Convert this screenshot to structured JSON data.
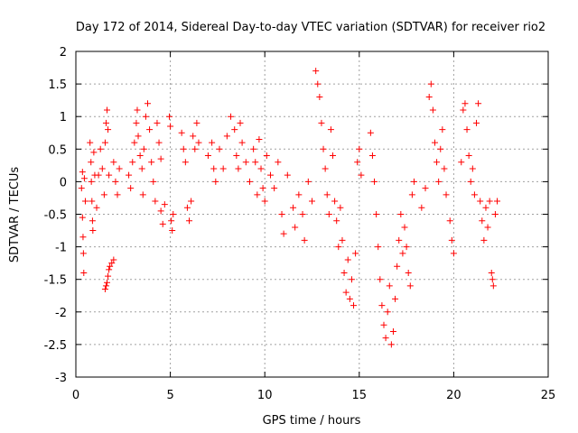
{
  "chart_data": {
    "type": "scatter",
    "title": "Day 172 of 2014, Sidereal Day-to-day VTEC variation (SDTVAR) for receiver rio2",
    "xlabel": "GPS time / hours",
    "ylabel": "SDTVAR / TECUs",
    "xlim": [
      0,
      25
    ],
    "ylim": [
      -3,
      2
    ],
    "xticks": [
      0,
      5,
      10,
      15,
      20,
      25
    ],
    "xtick_labels": [
      "0",
      "5",
      "10",
      "15",
      "20",
      "25"
    ],
    "yticks": [
      2,
      1.5,
      1,
      0.5,
      0,
      -0.5,
      -1,
      -1.5,
      -2,
      -2.5,
      -3
    ],
    "ytick_labels": [
      "2",
      "1.5",
      "1",
      "0.5",
      "0",
      "-0.5",
      "-1",
      "-1.5",
      "-2",
      "-2.5",
      "-3"
    ],
    "grid": true,
    "marker": "+",
    "color": "#ff0000",
    "series": [
      {
        "name": "SDTVAR",
        "points": [
          [
            0.3,
            -0.1
          ],
          [
            0.35,
            0.15
          ],
          [
            0.35,
            -0.55
          ],
          [
            0.38,
            -0.85
          ],
          [
            0.4,
            -1.1
          ],
          [
            0.42,
            -1.4
          ],
          [
            0.45,
            0.05
          ],
          [
            0.5,
            -0.3
          ],
          [
            0.75,
            0.6
          ],
          [
            0.8,
            0.3
          ],
          [
            0.82,
            0.0
          ],
          [
            0.85,
            -0.3
          ],
          [
            0.88,
            -0.6
          ],
          [
            0.9,
            -0.75
          ],
          [
            0.95,
            0.45
          ],
          [
            1.0,
            0.1
          ],
          [
            1.1,
            -0.4
          ],
          [
            1.2,
            0.1
          ],
          [
            1.3,
            0.5
          ],
          [
            1.4,
            0.2
          ],
          [
            1.5,
            -0.2
          ],
          [
            1.55,
            0.6
          ],
          [
            1.6,
            0.9
          ],
          [
            1.65,
            1.1
          ],
          [
            1.7,
            0.8
          ],
          [
            1.75,
            0.1
          ],
          [
            1.55,
            -1.65
          ],
          [
            1.6,
            -1.6
          ],
          [
            1.65,
            -1.55
          ],
          [
            1.7,
            -1.45
          ],
          [
            1.75,
            -1.35
          ],
          [
            1.8,
            -1.3
          ],
          [
            1.9,
            -1.25
          ],
          [
            2.0,
            -1.2
          ],
          [
            2.0,
            0.3
          ],
          [
            2.1,
            0.0
          ],
          [
            2.2,
            -0.2
          ],
          [
            2.3,
            0.2
          ],
          [
            2.8,
            0.1
          ],
          [
            2.9,
            -0.1
          ],
          [
            3.0,
            0.3
          ],
          [
            3.1,
            0.6
          ],
          [
            3.2,
            0.9
          ],
          [
            3.25,
            1.1
          ],
          [
            3.3,
            0.7
          ],
          [
            3.4,
            0.4
          ],
          [
            3.5,
            0.2
          ],
          [
            3.55,
            -0.2
          ],
          [
            3.6,
            0.5
          ],
          [
            3.7,
            1.0
          ],
          [
            3.8,
            1.2
          ],
          [
            3.9,
            0.8
          ],
          [
            4.0,
            0.3
          ],
          [
            4.1,
            0.0
          ],
          [
            4.2,
            -0.3
          ],
          [
            4.3,
            0.9
          ],
          [
            4.4,
            0.6
          ],
          [
            4.5,
            0.35
          ],
          [
            4.5,
            -0.45
          ],
          [
            4.6,
            -0.65
          ],
          [
            4.7,
            -0.35
          ],
          [
            4.95,
            1.0
          ],
          [
            5.0,
            0.85
          ],
          [
            5.05,
            -0.6
          ],
          [
            5.1,
            -0.75
          ],
          [
            5.15,
            -0.5
          ],
          [
            5.6,
            0.75
          ],
          [
            5.7,
            0.5
          ],
          [
            5.8,
            0.3
          ],
          [
            5.9,
            -0.4
          ],
          [
            6.0,
            -0.6
          ],
          [
            6.1,
            -0.3
          ],
          [
            6.2,
            0.7
          ],
          [
            6.3,
            0.5
          ],
          [
            6.4,
            0.9
          ],
          [
            6.5,
            0.6
          ],
          [
            7.0,
            0.4
          ],
          [
            7.2,
            0.6
          ],
          [
            7.3,
            0.2
          ],
          [
            7.4,
            0.0
          ],
          [
            7.6,
            0.5
          ],
          [
            7.8,
            0.2
          ],
          [
            8.0,
            0.7
          ],
          [
            8.2,
            1.0
          ],
          [
            8.4,
            0.8
          ],
          [
            8.5,
            0.4
          ],
          [
            8.6,
            0.2
          ],
          [
            8.7,
            0.9
          ],
          [
            8.8,
            0.6
          ],
          [
            9.0,
            0.3
          ],
          [
            9.2,
            0.0
          ],
          [
            9.4,
            0.5
          ],
          [
            9.5,
            0.3
          ],
          [
            9.6,
            -0.2
          ],
          [
            9.7,
            0.65
          ],
          [
            9.8,
            0.2
          ],
          [
            9.9,
            -0.1
          ],
          [
            10.0,
            -0.3
          ],
          [
            10.1,
            0.4
          ],
          [
            10.3,
            0.1
          ],
          [
            10.5,
            -0.1
          ],
          [
            10.7,
            0.3
          ],
          [
            10.9,
            -0.5
          ],
          [
            11.0,
            -0.8
          ],
          [
            11.2,
            0.1
          ],
          [
            11.5,
            -0.4
          ],
          [
            11.6,
            -0.7
          ],
          [
            11.8,
            -0.2
          ],
          [
            12.0,
            -0.5
          ],
          [
            12.1,
            -0.9
          ],
          [
            12.3,
            0.0
          ],
          [
            12.5,
            -0.3
          ],
          [
            12.7,
            1.7
          ],
          [
            12.8,
            1.5
          ],
          [
            12.9,
            1.3
          ],
          [
            13.0,
            0.9
          ],
          [
            13.1,
            0.5
          ],
          [
            13.2,
            0.2
          ],
          [
            13.3,
            -0.2
          ],
          [
            13.4,
            -0.5
          ],
          [
            13.5,
            0.8
          ],
          [
            13.6,
            0.4
          ],
          [
            13.7,
            -0.3
          ],
          [
            13.8,
            -0.6
          ],
          [
            13.9,
            -1.0
          ],
          [
            14.0,
            -0.4
          ],
          [
            14.1,
            -0.9
          ],
          [
            14.2,
            -1.4
          ],
          [
            14.3,
            -1.7
          ],
          [
            14.4,
            -1.2
          ],
          [
            14.5,
            -1.8
          ],
          [
            14.6,
            -1.5
          ],
          [
            14.7,
            -1.9
          ],
          [
            14.8,
            -1.1
          ],
          [
            14.9,
            0.3
          ],
          [
            15.0,
            0.5
          ],
          [
            15.1,
            0.1
          ],
          [
            15.6,
            0.75
          ],
          [
            15.7,
            0.4
          ],
          [
            15.8,
            0.0
          ],
          [
            15.9,
            -0.5
          ],
          [
            16.0,
            -1.0
          ],
          [
            16.1,
            -1.5
          ],
          [
            16.2,
            -1.9
          ],
          [
            16.3,
            -2.2
          ],
          [
            16.4,
            -2.4
          ],
          [
            16.5,
            -2.0
          ],
          [
            16.6,
            -1.6
          ],
          [
            16.7,
            -2.5
          ],
          [
            16.8,
            -2.3
          ],
          [
            16.9,
            -1.8
          ],
          [
            17.0,
            -1.3
          ],
          [
            17.1,
            -0.9
          ],
          [
            17.2,
            -0.5
          ],
          [
            17.3,
            -1.1
          ],
          [
            17.4,
            -0.7
          ],
          [
            17.5,
            -1.0
          ],
          [
            17.6,
            -1.4
          ],
          [
            17.7,
            -1.6
          ],
          [
            17.8,
            -0.2
          ],
          [
            17.9,
            0.0
          ],
          [
            18.3,
            -0.4
          ],
          [
            18.5,
            -0.1
          ],
          [
            18.7,
            1.3
          ],
          [
            18.8,
            1.5
          ],
          [
            18.9,
            1.1
          ],
          [
            19.0,
            0.6
          ],
          [
            19.1,
            0.3
          ],
          [
            19.2,
            0.0
          ],
          [
            19.3,
            0.5
          ],
          [
            19.4,
            0.8
          ],
          [
            19.5,
            0.2
          ],
          [
            19.6,
            -0.2
          ],
          [
            19.8,
            -0.6
          ],
          [
            19.9,
            -0.9
          ],
          [
            20.0,
            -1.1
          ],
          [
            20.4,
            0.3
          ],
          [
            20.5,
            1.1
          ],
          [
            20.6,
            1.2
          ],
          [
            20.7,
            0.8
          ],
          [
            20.8,
            0.4
          ],
          [
            20.9,
            0.0
          ],
          [
            21.0,
            0.2
          ],
          [
            21.1,
            -0.2
          ],
          [
            21.2,
            0.9
          ],
          [
            21.3,
            1.2
          ],
          [
            21.4,
            -0.3
          ],
          [
            21.5,
            -0.6
          ],
          [
            21.6,
            -0.9
          ],
          [
            21.7,
            -0.4
          ],
          [
            21.8,
            -0.7
          ],
          [
            21.9,
            -0.3
          ],
          [
            22.0,
            -1.4
          ],
          [
            22.05,
            -1.5
          ],
          [
            22.1,
            -1.6
          ],
          [
            22.2,
            -0.5
          ],
          [
            22.3,
            -0.3
          ]
        ]
      }
    ]
  }
}
